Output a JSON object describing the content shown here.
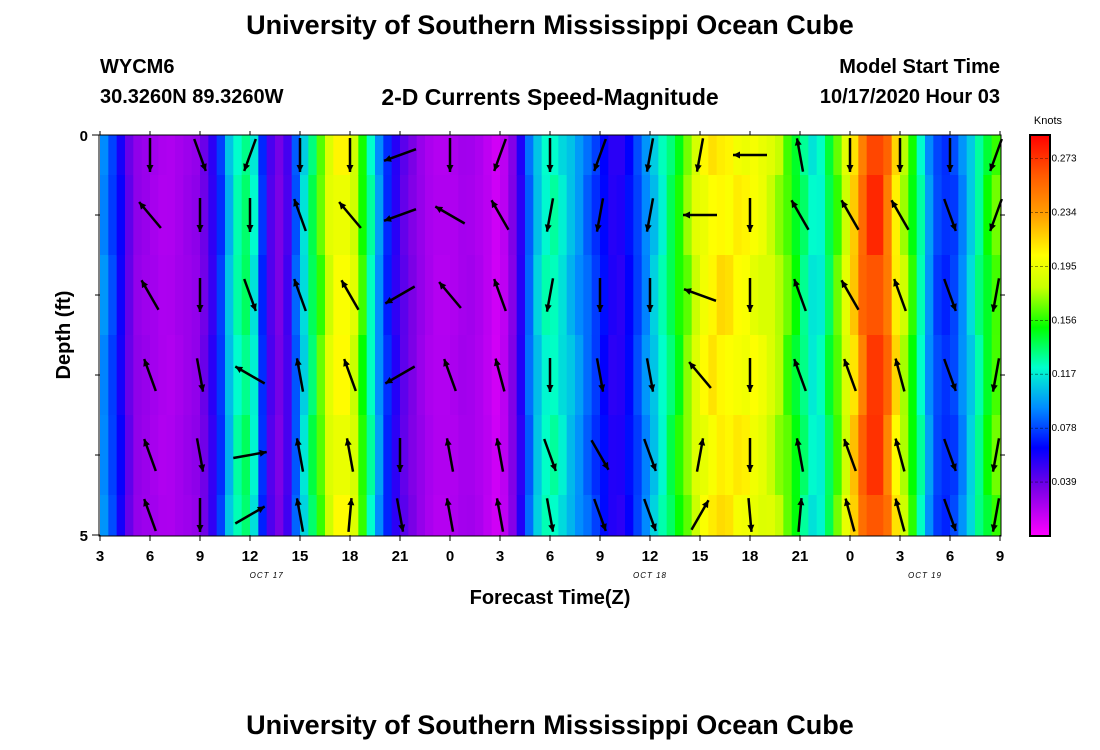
{
  "title_top": "University of Southern Mississippi Ocean Cube",
  "title_bottom": "University of Southern Mississippi Ocean Cube",
  "station": {
    "id": "WYCM6",
    "coords": "30.3260N 89.3260W"
  },
  "subtitle": "2-D Currents Speed-Magnitude",
  "model_start": {
    "label": "Model Start Time",
    "value": "10/17/2020 Hour 03"
  },
  "chart_data": {
    "type": "heatmap",
    "title": "2-D Currents Speed-Magnitude",
    "xlabel": "Forecast Time(Z)",
    "ylabel": "Depth (ft)",
    "x_range_hours": [
      0,
      54
    ],
    "x_start": "10/17/2020 03Z",
    "x_tick_hours": [
      0,
      3,
      6,
      9,
      12,
      15,
      18,
      21,
      24,
      27,
      30,
      33,
      36,
      39,
      42,
      45,
      48,
      51,
      54
    ],
    "x_tick_labels": [
      "3",
      "6",
      "9",
      "12",
      "15",
      "18",
      "21",
      "0",
      "3",
      "6",
      "9",
      "12",
      "15",
      "18",
      "21",
      "0",
      "3",
      "6",
      "9"
    ],
    "date_labels": [
      {
        "text": "OCT 17",
        "hour": 10
      },
      {
        "text": "OCT 18",
        "hour": 33
      },
      {
        "text": "OCT 19",
        "hour": 49.5
      }
    ],
    "y_range_ft": [
      0,
      5
    ],
    "y_tick_labels": [
      "0",
      "5"
    ],
    "y_minor_ticks_ft": [
      1,
      2,
      3,
      4
    ],
    "depth_layers_ft": [
      0.25,
      1,
      2,
      3,
      4,
      4.75
    ],
    "speed_profile_hours": [
      0,
      1,
      2,
      3,
      4,
      5,
      6,
      7,
      8,
      9,
      10,
      11,
      12,
      13,
      14,
      15,
      16,
      17,
      18,
      19,
      20,
      21,
      22,
      23,
      24,
      25,
      26,
      27,
      28,
      29,
      30,
      31,
      32,
      33,
      34,
      35,
      36,
      37,
      38,
      39,
      40,
      41,
      42,
      43,
      44,
      45,
      46,
      47,
      48,
      49,
      50,
      51,
      52,
      53,
      54
    ],
    "speed_profile_knots": [
      0.1,
      0.07,
      0.03,
      0.025,
      0.02,
      0.025,
      0.03,
      0.06,
      0.12,
      0.14,
      0.05,
      0.03,
      0.1,
      0.15,
      0.2,
      0.2,
      0.14,
      0.08,
      0.045,
      0.03,
      0.02,
      0.02,
      0.025,
      0.02,
      0.01,
      0.04,
      0.1,
      0.13,
      0.11,
      0.09,
      0.07,
      0.05,
      0.07,
      0.1,
      0.13,
      0.16,
      0.195,
      0.21,
      0.205,
      0.2,
      0.19,
      0.17,
      0.14,
      0.11,
      0.15,
      0.2,
      0.27,
      0.27,
      0.19,
      0.14,
      0.08,
      0.07,
      0.1,
      0.14,
      0.17
    ],
    "colorbar": {
      "unit": "Knots",
      "min": 0.0,
      "max": 0.29,
      "ticks": [
        "0.039",
        "0.078",
        "0.117",
        "0.156",
        "0.195",
        "0.234",
        "0.273"
      ]
    },
    "vector_rows_ft": [
      0.25,
      1,
      2,
      3,
      4,
      4.75
    ],
    "vector_cols_hours": [
      3,
      6,
      9,
      12,
      15,
      18,
      21,
      24,
      27,
      30,
      33,
      36,
      39,
      42,
      45,
      48,
      51,
      54
    ],
    "vector_directions_deg": [
      [
        180,
        160,
        200,
        180,
        180,
        250,
        180,
        200,
        180,
        200,
        190,
        190,
        270,
        350,
        180,
        180,
        180,
        200
      ],
      [
        320,
        180,
        180,
        340,
        320,
        250,
        300,
        330,
        190,
        190,
        190,
        270,
        180,
        330,
        330,
        330,
        160,
        200
      ],
      [
        330,
        180,
        160,
        340,
        330,
        240,
        320,
        340,
        190,
        180,
        180,
        290,
        180,
        340,
        330,
        340,
        160,
        190
      ],
      [
        340,
        170,
        300,
        350,
        340,
        240,
        340,
        345,
        180,
        170,
        170,
        320,
        180,
        340,
        340,
        345,
        160,
        190
      ],
      [
        340,
        170,
        80,
        350,
        350,
        180,
        350,
        350,
        160,
        150,
        160,
        10,
        180,
        350,
        340,
        345,
        160,
        190
      ],
      [
        340,
        180,
        60,
        350,
        5,
        170,
        350,
        350,
        170,
        160,
        160,
        30,
        175,
        5,
        345,
        345,
        160,
        190
      ]
    ]
  }
}
